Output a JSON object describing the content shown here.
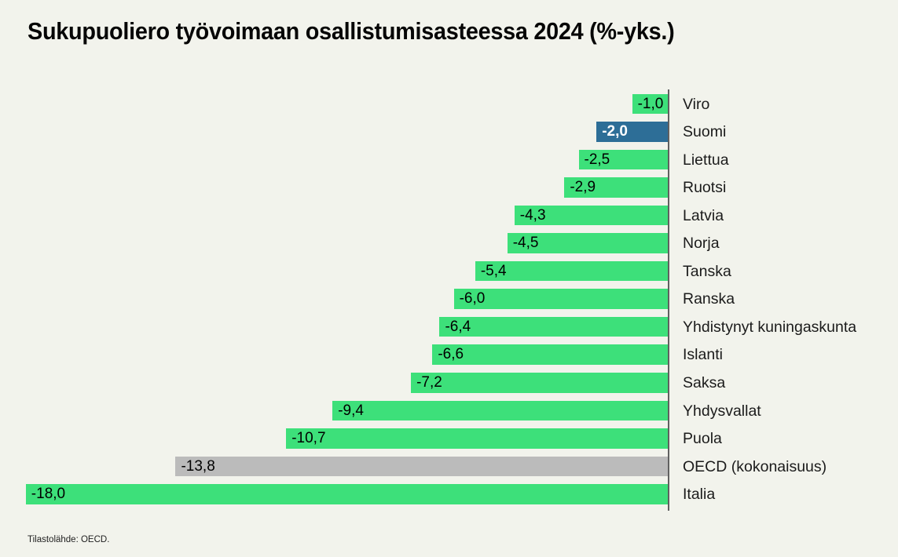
{
  "title": "Sukupuoliero työvoimaan osallistumisasteessa 2024 (%-yks.)",
  "source": "Tilastolähde: OECD.",
  "colors": {
    "background": "#f2f3ec",
    "bar_default": "#3de07a",
    "bar_highlight": "#2d6e97",
    "bar_neutral": "#bbbbbb",
    "axis_line": "#606060",
    "value_text": "#000000",
    "value_text_highlight": "#ffffff"
  },
  "chart_data": {
    "type": "bar",
    "orientation": "horizontal",
    "title": "Sukupuoliero työvoimaan osallistumisasteessa 2024 (%-yks.)",
    "xlabel": "",
    "ylabel": "",
    "xlim": [
      -18.5,
      0
    ],
    "grid": false,
    "legend": null,
    "unit": "%-yks.",
    "categories": [
      "Viro",
      "Suomi",
      "Liettua",
      "Ruotsi",
      "Latvia",
      "Norja",
      "Tanska",
      "Ranska",
      "Yhdistynyt kuningaskunta",
      "Islanti",
      "Saksa",
      "Yhdysvallat",
      "Puola",
      "OECD (kokonaisuus)",
      "Italia"
    ],
    "values": [
      -1.0,
      -2.0,
      -2.5,
      -2.9,
      -4.3,
      -4.5,
      -5.4,
      -6.0,
      -6.4,
      -6.6,
      -7.2,
      -9.4,
      -10.7,
      -13.8,
      -18.0
    ],
    "value_labels": [
      "-1,0",
      "-2,0",
      "-2,5",
      "-2,9",
      "-4,3",
      "-4,5",
      "-5,4",
      "-6,0",
      "-6,4",
      "-6,6",
      "-7,2",
      "-9,4",
      "-10,7",
      "-13,8",
      "-18,0"
    ],
    "bar_styles": [
      "default",
      "highlight",
      "default",
      "default",
      "default",
      "default",
      "default",
      "default",
      "default",
      "default",
      "default",
      "default",
      "default",
      "neutral",
      "default"
    ],
    "highlight_category": "Suomi",
    "neutral_category": "OECD (kokonaisuus)"
  }
}
